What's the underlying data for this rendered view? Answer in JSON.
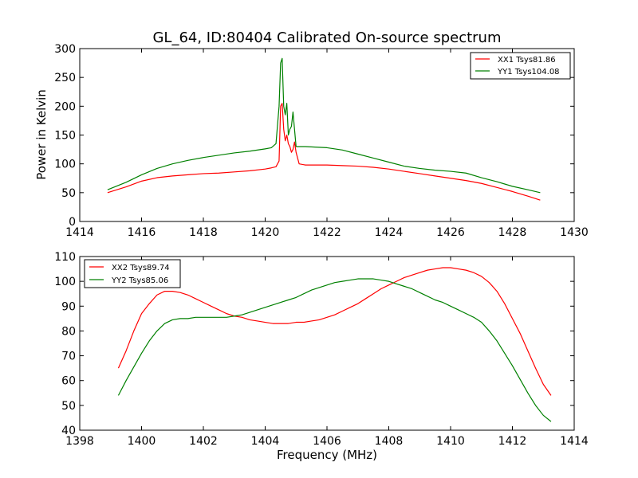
{
  "chart_data": [
    {
      "type": "line",
      "title": "GL_64, ID:80404 Calibrated On-source spectrum",
      "xlabel": "",
      "ylabel": "Power in Kelvin",
      "xlim": [
        1414,
        1430
      ],
      "ylim": [
        0,
        300
      ],
      "xticks": [
        "1414",
        "1416",
        "1418",
        "1420",
        "1422",
        "1424",
        "1426",
        "1428",
        "1430"
      ],
      "yticks": [
        "0",
        "50",
        "100",
        "150",
        "200",
        "250",
        "300"
      ],
      "grid": false,
      "legend": "top-right",
      "series": [
        {
          "name": "XX1 Tsys81.86",
          "color": "#ff0000",
          "x": [
            1414.9,
            1415.5,
            1416.0,
            1416.5,
            1417.0,
            1417.5,
            1418.0,
            1418.5,
            1419.0,
            1419.5,
            1420.0,
            1420.2,
            1420.35,
            1420.45,
            1420.5,
            1420.55,
            1420.6,
            1420.65,
            1420.7,
            1420.75,
            1420.8,
            1420.85,
            1420.9,
            1420.95,
            1421.0,
            1421.1,
            1421.3,
            1422.0,
            1422.5,
            1423.0,
            1423.5,
            1424.0,
            1424.5,
            1425.0,
            1425.5,
            1426.0,
            1426.5,
            1427.0,
            1427.5,
            1428.0,
            1428.5,
            1428.9
          ],
          "y": [
            50,
            60,
            70,
            76,
            79,
            81,
            83,
            84,
            86,
            88,
            91,
            93,
            95,
            105,
            200,
            205,
            160,
            140,
            150,
            135,
            130,
            120,
            125,
            138,
            120,
            100,
            98,
            98,
            97,
            96,
            94,
            91,
            87,
            83,
            79,
            75,
            71,
            66,
            59,
            52,
            44,
            37
          ]
        },
        {
          "name": "YY1 Tsys104.08",
          "color": "#008000",
          "x": [
            1414.9,
            1415.5,
            1416.0,
            1416.5,
            1417.0,
            1417.5,
            1418.0,
            1418.5,
            1419.0,
            1419.5,
            1420.0,
            1420.2,
            1420.35,
            1420.45,
            1420.5,
            1420.55,
            1420.6,
            1420.65,
            1420.7,
            1420.75,
            1420.8,
            1420.85,
            1420.9,
            1420.95,
            1421.0,
            1421.1,
            1421.3,
            1422.0,
            1422.5,
            1423.0,
            1423.5,
            1424.0,
            1424.5,
            1425.0,
            1425.5,
            1426.0,
            1426.5,
            1427.0,
            1427.5,
            1428.0,
            1428.5,
            1428.9
          ],
          "y": [
            55,
            68,
            81,
            92,
            100,
            106,
            111,
            115,
            119,
            122,
            126,
            128,
            135,
            200,
            275,
            283,
            200,
            185,
            205,
            150,
            160,
            165,
            190,
            160,
            130,
            130,
            130,
            128,
            124,
            117,
            110,
            103,
            96,
            92,
            89,
            87,
            84,
            76,
            69,
            61,
            55,
            50
          ]
        }
      ]
    },
    {
      "type": "line",
      "title": "",
      "xlabel": "Frequency (MHz)",
      "ylabel": "",
      "xlim": [
        1398,
        1414
      ],
      "ylim": [
        40,
        110
      ],
      "xticks": [
        "1398",
        "1400",
        "1402",
        "1404",
        "1406",
        "1408",
        "1410",
        "1412",
        "1414"
      ],
      "yticks": [
        "40",
        "50",
        "60",
        "70",
        "80",
        "90",
        "100",
        "110"
      ],
      "grid": false,
      "legend": "top-left",
      "series": [
        {
          "name": "XX2 Tsys89.74",
          "color": "#ff0000",
          "x": [
            1399.25,
            1399.5,
            1399.75,
            1400.0,
            1400.25,
            1400.5,
            1400.75,
            1401.0,
            1401.25,
            1401.5,
            1401.75,
            1402.0,
            1402.25,
            1402.5,
            1402.75,
            1403.0,
            1403.25,
            1403.5,
            1403.75,
            1404.0,
            1404.25,
            1404.5,
            1404.75,
            1405.0,
            1405.25,
            1405.5,
            1405.75,
            1406.0,
            1406.25,
            1406.5,
            1406.75,
            1407.0,
            1407.25,
            1407.5,
            1407.75,
            1408.0,
            1408.25,
            1408.5,
            1408.75,
            1409.0,
            1409.25,
            1409.5,
            1409.75,
            1410.0,
            1410.25,
            1410.5,
            1410.75,
            1411.0,
            1411.25,
            1411.5,
            1411.75,
            1412.0,
            1412.25,
            1412.5,
            1412.75,
            1413.0,
            1413.25
          ],
          "y": [
            65,
            72,
            80,
            87,
            91,
            94.5,
            96,
            96,
            95.5,
            94.5,
            93,
            91.5,
            90,
            88.5,
            87,
            86,
            85.5,
            84.5,
            84,
            83.5,
            83,
            83,
            83,
            83.5,
            83.5,
            84,
            84.5,
            85.5,
            86.5,
            88,
            89.5,
            91,
            93,
            95,
            97,
            98.5,
            100,
            101.5,
            102.5,
            103.5,
            104.5,
            105,
            105.5,
            105.5,
            105,
            104.5,
            103.5,
            102,
            99.5,
            96,
            91,
            85,
            79,
            72,
            65,
            58.5,
            54
          ]
        },
        {
          "name": "YY2 Tsys85.06",
          "color": "#008000",
          "x": [
            1399.25,
            1399.5,
            1399.75,
            1400.0,
            1400.25,
            1400.5,
            1400.75,
            1401.0,
            1401.25,
            1401.5,
            1401.75,
            1402.0,
            1402.25,
            1402.5,
            1402.75,
            1403.0,
            1403.25,
            1403.5,
            1403.75,
            1404.0,
            1404.25,
            1404.5,
            1404.75,
            1405.0,
            1405.25,
            1405.5,
            1405.75,
            1406.0,
            1406.25,
            1406.5,
            1406.75,
            1407.0,
            1407.25,
            1407.5,
            1407.75,
            1408.0,
            1408.25,
            1408.5,
            1408.75,
            1409.0,
            1409.25,
            1409.5,
            1409.75,
            1410.0,
            1410.25,
            1410.5,
            1410.75,
            1411.0,
            1411.25,
            1411.5,
            1411.75,
            1412.0,
            1412.25,
            1412.5,
            1412.75,
            1413.0,
            1413.25
          ],
          "y": [
            54,
            60,
            65.5,
            71,
            76,
            80,
            83,
            84.5,
            85,
            85,
            85.5,
            85.5,
            85.5,
            85.5,
            85.5,
            86,
            86.5,
            87.5,
            88.5,
            89.5,
            90.5,
            91.5,
            92.5,
            93.5,
            95,
            96.5,
            97.5,
            98.5,
            99.5,
            100,
            100.5,
            101,
            101,
            101,
            100.5,
            100,
            99,
            98,
            97,
            95.5,
            94,
            92.5,
            91.5,
            90,
            88.5,
            87,
            85.5,
            83.5,
            80,
            76,
            71,
            66,
            60.5,
            55,
            50,
            46,
            43.5
          ]
        }
      ]
    }
  ]
}
